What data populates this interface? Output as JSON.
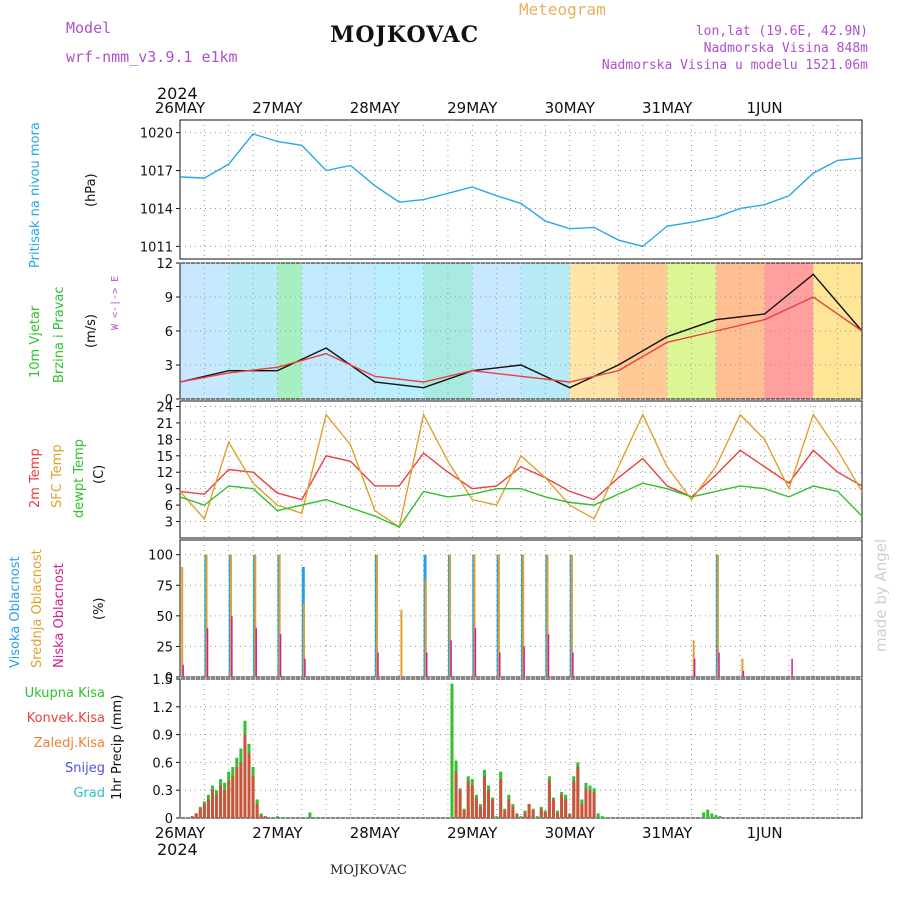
{
  "header": {
    "model_label": "Model",
    "model_name": "wrf-nmm_v3.9.1  e1km",
    "station": "MOJKOVAC",
    "meteogram": "Meteogram",
    "lonlat": "lon,lat (19.6E, 42.9N)",
    "elevation": "Nadmorska Visina 848m",
    "model_elevation": "Nadmorska Visina u modelu 1521.06m",
    "year_top": "2024",
    "year_bottom": "2024",
    "footer_station": "MOJKOVAC",
    "credit": "made by Angel"
  },
  "days": [
    "26MAY",
    "27MAY",
    "28MAY",
    "29MAY",
    "30MAY",
    "31MAY",
    "1JUN"
  ],
  "colors": {
    "pressure": "#28a8e8",
    "temp2m": "#e84040",
    "sfc": "#e0a030",
    "dew": "#30c030",
    "high": "#28a0e8",
    "mid": "#e0a030",
    "low": "#d02090",
    "precip_total": "#30c030",
    "precip_conv": "#e84040"
  },
  "panels": {
    "pressure": {
      "label1": "Pritisak na nivou mora",
      "label2": "(hPa)",
      "ticks": [
        "1011",
        "1014",
        "1017",
        "1020"
      ]
    },
    "wind": {
      "label1": "10m Vjetar",
      "label2": "Brzina i Pravac",
      "label3": "(m/s)",
      "ticks": [
        "0",
        "3",
        "6",
        "9",
        "12"
      ],
      "compass": "W <-|-> E"
    },
    "temp": {
      "label1": "2m Temp",
      "label2": "SFC Temp",
      "label3": "dewpt Temp",
      "label4": "(C)",
      "ticks": [
        "3",
        "6",
        "9",
        "12",
        "15",
        "18",
        "21",
        "24"
      ]
    },
    "cloud": {
      "label1": "Visoka Oblacnost",
      "label2": "Srednja Oblacnost",
      "label3": "Niska Oblacnost",
      "label4": "(%)",
      "ticks": [
        "0",
        "25",
        "50",
        "75",
        "100"
      ]
    },
    "precip": {
      "legend": [
        "Ukupna Kisa",
        "Konvek.Kisa",
        "Zaledj.Kisa",
        "Snijeg",
        "Grad"
      ],
      "ylabel": "1hr Precip (mm)",
      "ticks": [
        "0",
        "0.3",
        "0.6",
        "0.9",
        "1.2",
        "1.5"
      ]
    }
  },
  "chart_data": [
    {
      "type": "line",
      "title": "Pritisak na nivou mora",
      "ylabel": "(hPa)",
      "ylim": [
        1010,
        1021
      ],
      "x": [
        0,
        6,
        12,
        18,
        24,
        30,
        36,
        42,
        48,
        54,
        60,
        66,
        72,
        78,
        84,
        90,
        96,
        102,
        108,
        114,
        120,
        126,
        132,
        138,
        144,
        150,
        156,
        162,
        168
      ],
      "series": [
        {
          "values": [
            1016.5,
            1016.4,
            1017.5,
            1019.9,
            1019.3,
            1019.0,
            1017.0,
            1017.4,
            1015.8,
            1014.5,
            1014.7,
            1015.2,
            1015.7,
            1015.0,
            1014.4,
            1013.0,
            1012.4,
            1012.5,
            1011.5,
            1011.0,
            1012.6,
            1012.9,
            1013.3,
            1014.0,
            1014.3,
            1015.0,
            1016.8,
            1017.8,
            1018.0
          ]
        }
      ]
    },
    {
      "type": "line",
      "title": "10m Vjetar Brzina i Pravac",
      "ylabel": "(m/s)",
      "ylim": [
        0,
        12
      ],
      "x": [
        0,
        12,
        24,
        36,
        48,
        60,
        72,
        84,
        96,
        108,
        120,
        132,
        144,
        156,
        168
      ],
      "series": [
        {
          "values": [
            1.5,
            2.5,
            2.5,
            4.5,
            1.5,
            1.0,
            2.5,
            3.0,
            1.0,
            3.0,
            5.5,
            7.0,
            7.5,
            11.0,
            6.0
          ]
        },
        {
          "values": [
            1.5,
            2.3,
            2.8,
            4.0,
            2.0,
            1.5,
            2.5,
            2.0,
            1.5,
            2.5,
            5.0,
            6.0,
            7.0,
            9.0,
            6.0
          ]
        }
      ]
    },
    {
      "type": "line",
      "title": "Temp",
      "ylabel": "(C)",
      "ylim": [
        0,
        24
      ],
      "x": [
        0,
        6,
        12,
        18,
        24,
        30,
        36,
        42,
        48,
        54,
        60,
        66,
        72,
        78,
        84,
        90,
        96,
        102,
        108,
        114,
        120,
        126,
        132,
        138,
        144,
        150,
        156,
        162,
        168
      ],
      "series": [
        {
          "name": "2m Temp",
          "values": [
            8.5,
            8.0,
            12.5,
            12.0,
            8.2,
            7.0,
            15.0,
            14.0,
            9.5,
            9.5,
            15.5,
            12.0,
            9.0,
            9.5,
            13.0,
            11.0,
            8.5,
            7.0,
            11.0,
            14.5,
            9.5,
            7.5,
            11.5,
            16.0,
            13.0,
            10.0,
            16.0,
            12.0,
            9.5
          ]
        },
        {
          "name": "SFC Temp",
          "values": [
            8.5,
            3.5,
            17.5,
            10.0,
            6.0,
            4.5,
            22.5,
            17.0,
            5.0,
            2.0,
            22.5,
            14.0,
            7.0,
            6.0,
            15.0,
            11.0,
            6.0,
            3.5,
            13.0,
            22.5,
            13.0,
            7.0,
            13.0,
            22.5,
            18.0,
            9.0,
            22.5,
            16.0,
            8.5
          ]
        },
        {
          "name": "dewpt Temp",
          "values": [
            7.5,
            6.0,
            9.5,
            9.0,
            5.0,
            6.0,
            7.0,
            5.5,
            4.0,
            2.0,
            8.5,
            7.5,
            8.0,
            9.0,
            9.0,
            7.5,
            6.5,
            6.0,
            8.0,
            10.0,
            9.0,
            7.5,
            8.5,
            9.5,
            9.0,
            7.5,
            9.5,
            8.5,
            4.0
          ]
        }
      ]
    },
    {
      "type": "bar",
      "title": "Oblacnost",
      "ylabel": "(%)",
      "ylim": [
        0,
        100
      ],
      "x": [
        0,
        6,
        12,
        18,
        24,
        30,
        36,
        42,
        48,
        54,
        60,
        66,
        72,
        78,
        84,
        90,
        96,
        102,
        108,
        114,
        120,
        126,
        132,
        138,
        144,
        150,
        156,
        162,
        168
      ],
      "series": [
        {
          "name": "Visoka Oblacnost",
          "values": [
            0,
            100,
            100,
            100,
            100,
            90,
            0,
            0,
            100,
            0,
            100,
            100,
            100,
            100,
            100,
            100,
            100,
            0,
            0,
            0,
            0,
            0,
            100,
            0,
            0,
            0,
            0,
            0,
            0
          ]
        },
        {
          "name": "Srednja Oblacnost",
          "values": [
            90,
            100,
            100,
            100,
            100,
            60,
            0,
            0,
            100,
            55,
            80,
            100,
            100,
            100,
            100,
            100,
            100,
            0,
            0,
            0,
            0,
            30,
            100,
            15,
            0,
            0,
            0,
            0,
            0
          ]
        },
        {
          "name": "Niska Oblacnost",
          "values": [
            10,
            40,
            50,
            40,
            35,
            15,
            0,
            0,
            20,
            0,
            20,
            30,
            40,
            20,
            25,
            35,
            20,
            0,
            0,
            0,
            0,
            15,
            20,
            5,
            0,
            15,
            0,
            0,
            0
          ]
        }
      ]
    },
    {
      "type": "bar",
      "title": "1hr Precip",
      "ylabel": "1hr Precip (mm)",
      "ylim": [
        0,
        1.5
      ],
      "x": [
        3,
        4,
        5,
        6,
        7,
        8,
        9,
        10,
        11,
        12,
        13,
        14,
        15,
        16,
        17,
        18,
        19,
        20,
        21,
        24,
        32,
        67,
        68,
        69,
        70,
        71,
        72,
        73,
        74,
        75,
        76,
        77,
        78,
        79,
        80,
        81,
        82,
        83,
        84,
        85,
        86,
        87,
        88,
        89,
        90,
        91,
        92,
        93,
        94,
        95,
        96,
        97,
        98,
        99,
        100,
        101,
        102,
        103,
        104,
        129,
        130,
        131,
        132,
        133
      ],
      "series": [
        {
          "name": "Ukupna Kisa",
          "values": [
            0.02,
            0.05,
            0.12,
            0.18,
            0.25,
            0.35,
            0.3,
            0.42,
            0.38,
            0.5,
            0.55,
            0.65,
            0.75,
            1.05,
            0.8,
            0.55,
            0.2,
            0.05,
            0.02,
            0.02,
            0.06,
            1.45,
            0.62,
            0.32,
            0.1,
            0.45,
            0.42,
            0.25,
            0.15,
            0.52,
            0.35,
            0.22,
            0.02,
            0.5,
            0.1,
            0.25,
            0.15,
            0.05,
            0.02,
            0.08,
            0.15,
            0.1,
            0.02,
            0.12,
            0.08,
            0.45,
            0.22,
            0.08,
            0.28,
            0.25,
            0.05,
            0.45,
            0.6,
            0.2,
            0.38,
            0.35,
            0.32,
            0.05,
            0.02,
            0.06,
            0.09,
            0.05,
            0.03,
            0.02
          ]
        },
        {
          "name": "Konvek.Kisa",
          "values": [
            0.02,
            0.05,
            0.1,
            0.15,
            0.2,
            0.3,
            0.25,
            0.35,
            0.3,
            0.4,
            0.45,
            0.55,
            0.6,
            0.9,
            0.7,
            0.45,
            0.15,
            0.03,
            0.02,
            0.0,
            0.0,
            0.0,
            0.5,
            0.3,
            0.08,
            0.4,
            0.35,
            0.22,
            0.12,
            0.45,
            0.3,
            0.2,
            0.0,
            0.42,
            0.08,
            0.2,
            0.12,
            0.04,
            0.0,
            0.06,
            0.15,
            0.08,
            0.0,
            0.1,
            0.06,
            0.4,
            0.2,
            0.05,
            0.25,
            0.2,
            0.04,
            0.4,
            0.55,
            0.15,
            0.32,
            0.3,
            0.28,
            0.0,
            0.0,
            0.0,
            0.0,
            0.0,
            0.0,
            0.0
          ]
        }
      ]
    }
  ]
}
